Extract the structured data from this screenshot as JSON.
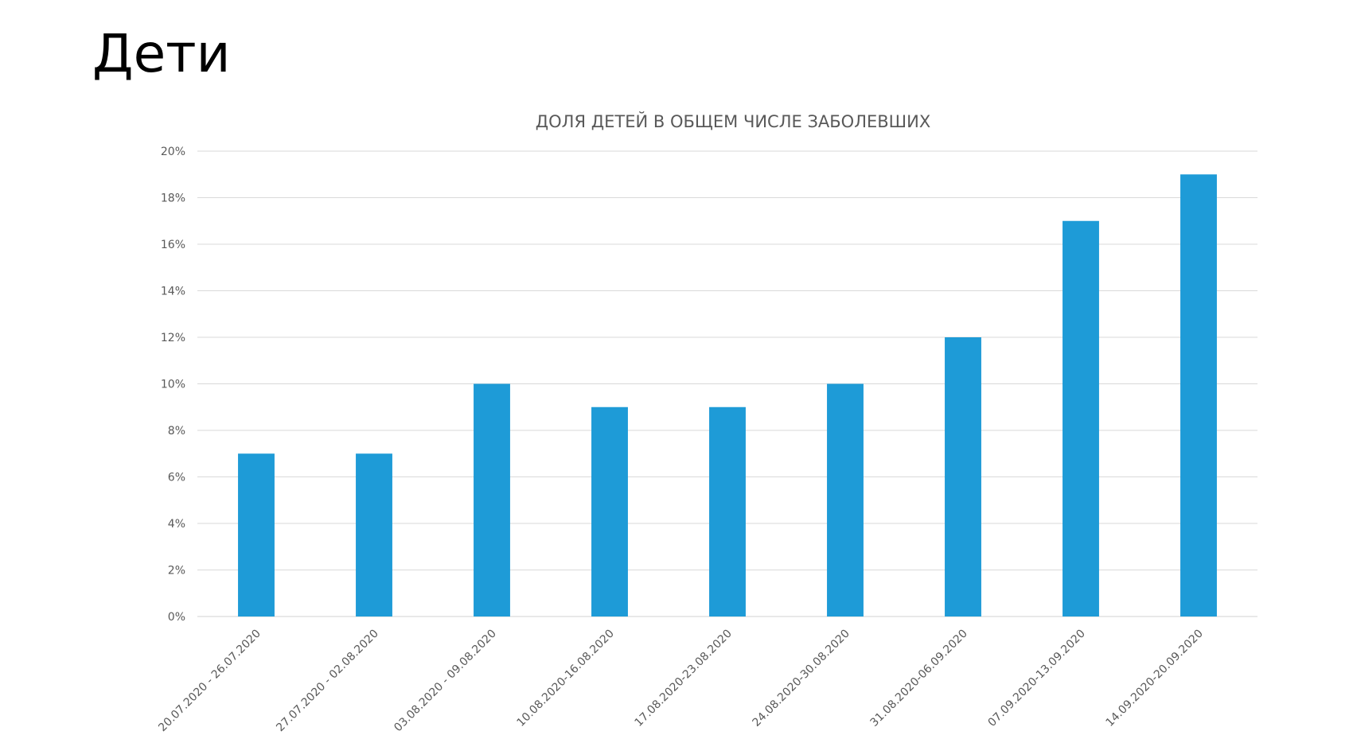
{
  "slide": {
    "title": "Дети"
  },
  "chart_data": {
    "type": "bar",
    "title": "ДОЛЯ ДЕТЕЙ В ОБЩЕМ ЧИСЛЕ ЗАБОЛЕВШИХ",
    "xlabel": "",
    "ylabel": "",
    "categories": [
      "20.07.2020 - 26.07.2020",
      "27.07.2020 - 02.08.2020",
      "03.08.2020 - 09.08.2020",
      "10.08.2020-16.08.2020",
      "17.08.2020-23.08.2020",
      "24.08.2020-30.08.2020",
      "31.08.2020-06.09.2020",
      "07.09.2020-13.09.2020",
      "14.09.2020-20.09.2020"
    ],
    "values": [
      7,
      7,
      10,
      9,
      9,
      10,
      12,
      17,
      19
    ],
    "value_unit": "%",
    "ylim": [
      0,
      20
    ],
    "yticks": [
      "0%",
      "2%",
      "4%",
      "6%",
      "8%",
      "10%",
      "12%",
      "14%",
      "16%",
      "18%",
      "20%"
    ],
    "grid": true,
    "legend": "none",
    "bar_color": "#1E9BD7"
  }
}
